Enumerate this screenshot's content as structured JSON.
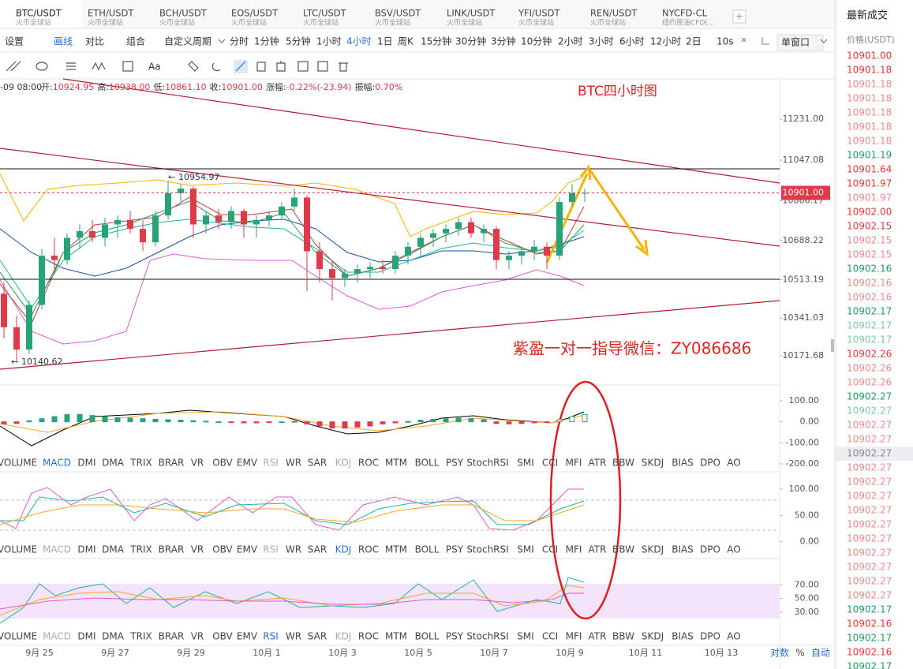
{
  "tabs": [
    {
      "symbol": "BTC/USDT",
      "exchange": "火币全球站"
    },
    {
      "symbol": "ETH/USDT",
      "exchange": "火币全球站"
    },
    {
      "symbol": "BCH/USDT",
      "exchange": "火币全球站"
    },
    {
      "symbol": "EOS/USDT",
      "exchange": "火币全球站"
    },
    {
      "symbol": "LTC/USDT",
      "exchange": "火币全球站"
    },
    {
      "symbol": "BSV/USDT",
      "exchange": "火币全球站"
    },
    {
      "symbol": "LINK/USDT",
      "exchange": "火币全球站"
    },
    {
      "symbol": "YFI/USDT",
      "exchange": "火币全球站"
    },
    {
      "symbol": "REN/USDT",
      "exchange": "火币全球站"
    },
    {
      "symbol": "NYCFD-CL",
      "exchange": "纽约原油CFD(..."
    }
  ],
  "toolbar": {
    "tools": [
      "设置",
      "画线",
      "对比",
      "组合"
    ],
    "custom_period": "自定义周期",
    "periods": [
      "分时",
      "1分钟",
      "5分钟",
      "1小时",
      "4小时",
      "1日",
      "周K",
      "15分钟",
      "30分钟",
      "3分钟",
      "10分钟",
      "2小时",
      "3小时",
      "6小时",
      "12小时",
      "2日"
    ],
    "refresh": "10s",
    "window": "单窗口"
  },
  "draw_tools": {
    "text_tool": "Aa"
  },
  "info_line": {
    "time": "-09 08:00",
    "items": [
      {
        "label": "开:",
        "value": "10924.95"
      },
      {
        "label": "高:",
        "value": "10938.00"
      },
      {
        "label": "低:",
        "value": "10861.10"
      },
      {
        "label": "收:",
        "value": "10901.00"
      },
      {
        "label": "涨幅:",
        "value": "-0.22%(-23.94)"
      },
      {
        "label": "振幅:",
        "value": "0.70%"
      }
    ]
  },
  "price_chart": {
    "ylim": [
      10045,
      11411
    ],
    "yticks": [
      {
        "value": 11231,
        "label": "11231.00"
      },
      {
        "value": 11047.08,
        "label": "11047.08"
      },
      {
        "value": 10866.17,
        "label": "10866.17"
      },
      {
        "value": 10688.22,
        "label": "10688.22"
      },
      {
        "value": 10513.19,
        "label": "10513.19"
      },
      {
        "value": 10341.03,
        "label": "10341.03"
      },
      {
        "value": 10171.68,
        "label": "10171.68"
      }
    ],
    "last_price": {
      "value": 10901,
      "label": "10901.00"
    },
    "high_label": {
      "value": 10954.97,
      "label": "10954.97"
    },
    "low_label": {
      "value": 10140.62,
      "label": "10140.62"
    },
    "up_color": "#27a37a",
    "down_color": "#e0394a",
    "candles": [
      [
        10450,
        10500,
        10250,
        10300
      ],
      [
        10300,
        10350,
        10140,
        10200
      ],
      [
        10200,
        10420,
        10180,
        10400
      ],
      [
        10400,
        10650,
        10380,
        10620
      ],
      [
        10620,
        10700,
        10560,
        10600
      ],
      [
        10600,
        10720,
        10580,
        10700
      ],
      [
        10700,
        10760,
        10650,
        10730
      ],
      [
        10730,
        10780,
        10680,
        10700
      ],
      [
        10700,
        10790,
        10660,
        10760
      ],
      [
        10760,
        10800,
        10700,
        10780
      ],
      [
        10780,
        10820,
        10720,
        10740
      ],
      [
        10740,
        10780,
        10640,
        10680
      ],
      [
        10680,
        10820,
        10660,
        10800
      ],
      [
        10800,
        10955,
        10780,
        10900
      ],
      [
        10900,
        10940,
        10860,
        10920
      ],
      [
        10920,
        10930,
        10700,
        10760
      ],
      [
        10760,
        10820,
        10720,
        10800
      ],
      [
        10800,
        10830,
        10740,
        10770
      ],
      [
        10770,
        10840,
        10740,
        10820
      ],
      [
        10820,
        10830,
        10700,
        10760
      ],
      [
        10760,
        10800,
        10700,
        10780
      ],
      [
        10780,
        10820,
        10750,
        10800
      ],
      [
        10800,
        10860,
        10780,
        10840
      ],
      [
        10840,
        10920,
        10820,
        10880
      ],
      [
        10880,
        10890,
        10460,
        10640
      ],
      [
        10640,
        10680,
        10500,
        10560
      ],
      [
        10560,
        10600,
        10420,
        10520
      ],
      [
        10520,
        10560,
        10480,
        10540
      ],
      [
        10540,
        10580,
        10500,
        10560
      ],
      [
        10560,
        10590,
        10520,
        10570
      ],
      [
        10570,
        10600,
        10540,
        10560
      ],
      [
        10560,
        10640,
        10540,
        10620
      ],
      [
        10620,
        10680,
        10580,
        10660
      ],
      [
        10660,
        10720,
        10620,
        10700
      ],
      [
        10700,
        10740,
        10660,
        10720
      ],
      [
        10720,
        10760,
        10680,
        10740
      ],
      [
        10740,
        10790,
        10710,
        10770
      ],
      [
        10770,
        10790,
        10700,
        10720
      ],
      [
        10720,
        10760,
        10680,
        10740
      ],
      [
        10740,
        10750,
        10560,
        10600
      ],
      [
        10600,
        10640,
        10560,
        10620
      ],
      [
        10620,
        10660,
        10580,
        10640
      ],
      [
        10640,
        10690,
        10600,
        10660
      ],
      [
        10660,
        10680,
        10560,
        10620
      ],
      [
        10620,
        10880,
        10600,
        10860
      ],
      [
        10860,
        10940,
        10840,
        10900
      ],
      [
        10900,
        10920,
        10860,
        10901
      ]
    ]
  },
  "annotations": {
    "title": "BTC四小时图",
    "contact": "紫盈一对一指导微信：ZY086686"
  },
  "macd_panel": {
    "ylim": [
      -207.5,
      175
    ],
    "yticks": [
      {
        "value": 100,
        "label": "100.00"
      },
      {
        "value": 0,
        "label": "0.00"
      },
      {
        "value": -100,
        "label": "-100.00"
      },
      {
        "value": -200,
        "label": "-200.00"
      }
    ],
    "histogram": [
      -10,
      -8,
      5,
      15,
      25,
      35,
      35,
      30,
      25,
      20,
      18,
      15,
      12,
      10,
      8,
      5,
      3,
      0,
      -3,
      -5,
      -5,
      -3,
      0,
      2,
      -10,
      -20,
      -30,
      -30,
      -25,
      -20,
      -10,
      -5,
      2,
      8,
      12,
      15,
      18,
      15,
      10,
      -8,
      -10,
      -8,
      -5,
      -3,
      10,
      25,
      35
    ]
  },
  "kdj_panel": {
    "ylim": [
      -20,
      130
    ],
    "yticks": [
      {
        "value": 100,
        "label": "100.00"
      },
      {
        "value": 50,
        "label": "50.00"
      },
      {
        "value": 0,
        "label": "0.00"
      }
    ]
  },
  "rsi_panel": {
    "ylim": [
      -9,
      106
    ],
    "yticks": [
      {
        "value": 70,
        "label": "70.00"
      },
      {
        "value": 50,
        "label": "50.00"
      },
      {
        "value": 30,
        "label": "30.00"
      }
    ]
  },
  "indicators": [
    "VOLUME",
    "MACD",
    "DMI",
    "DMA",
    "TRIX",
    "BRAR",
    "VR",
    "OBV",
    "EMV",
    "RSI",
    "WR",
    "SAR",
    "KDJ",
    "ROC",
    "MTM",
    "BOLL",
    "PSY",
    "StochRSI",
    "SMI",
    "CCI",
    "MFI",
    "ATR",
    "BBW",
    "SKDJ",
    "BIAS",
    "DPO",
    "AO"
  ],
  "dates": [
    "9月 25",
    "9月 27",
    "9月 29",
    "10月 1",
    "10月 3",
    "10月 5",
    "10月 7",
    "10月 9",
    "10月 11",
    "10月 13"
  ],
  "axis_options": [
    "对数",
    "%",
    "自动"
  ],
  "trades": {
    "title": "最新成交",
    "header": "价格(USDT)",
    "rows": [
      {
        "price": "10901.00",
        "color": "#e53935"
      },
      {
        "price": "10901.18",
        "color": "#e53935"
      },
      {
        "price": "10901.18",
        "color": "#f08a8a"
      },
      {
        "price": "10901.18",
        "color": "#f08a8a"
      },
      {
        "price": "10901.18",
        "color": "#f08a8a"
      },
      {
        "price": "10901.18",
        "color": "#f08a8a"
      },
      {
        "price": "10901.18",
        "color": "#f08a8a"
      },
      {
        "price": "10901.19",
        "color": "#1e9e5e"
      },
      {
        "price": "10901.64",
        "color": "#e53935"
      },
      {
        "price": "10901.97",
        "color": "#e53935"
      },
      {
        "price": "10901.97",
        "color": "#f08a8a"
      },
      {
        "price": "10902.00",
        "color": "#e53935"
      },
      {
        "price": "10902.15",
        "color": "#e53935"
      },
      {
        "price": "10902.15",
        "color": "#f08a8a"
      },
      {
        "price": "10902.15",
        "color": "#f08a8a"
      },
      {
        "price": "10902.16",
        "color": "#1e9e5e"
      },
      {
        "price": "10902.16",
        "color": "#f08a8a"
      },
      {
        "price": "10902.16",
        "color": "#f08a8a"
      },
      {
        "price": "10902.17",
        "color": "#1e9e5e"
      },
      {
        "price": "10902.17",
        "color": "#7fcaa0"
      },
      {
        "price": "10902.17",
        "color": "#7fcaa0"
      },
      {
        "price": "10902.26",
        "color": "#e53935"
      },
      {
        "price": "10902.26",
        "color": "#f08a8a"
      },
      {
        "price": "10902.26",
        "color": "#f08a8a"
      },
      {
        "price": "10902.27",
        "color": "#1e9e5e"
      },
      {
        "price": "10902.27",
        "color": "#7fcaa0"
      },
      {
        "price": "10902.27",
        "color": "#f08a8a"
      },
      {
        "price": "10902.27",
        "color": "#f08a8a"
      },
      {
        "price": "10902.27",
        "color": "#8a8a8a"
      },
      {
        "price": "10902.27",
        "color": "#f08a8a"
      },
      {
        "price": "10902.27",
        "color": "#f08a8a"
      },
      {
        "price": "10902.27",
        "color": "#f08a8a"
      },
      {
        "price": "10902.27",
        "color": "#f08a8a"
      },
      {
        "price": "10902.27",
        "color": "#f08a8a"
      },
      {
        "price": "10902.27",
        "color": "#f08a8a"
      },
      {
        "price": "10902.27",
        "color": "#f08a8a"
      },
      {
        "price": "10902.27",
        "color": "#f08a8a"
      },
      {
        "price": "10902.27",
        "color": "#f08a8a"
      },
      {
        "price": "10902.27",
        "color": "#f08a8a"
      },
      {
        "price": "10902.17",
        "color": "#1e9e5e"
      },
      {
        "price": "10902.16",
        "color": "#e53935"
      },
      {
        "price": "10902.17",
        "color": "#1e9e5e"
      },
      {
        "price": "10902.16",
        "color": "#e53935"
      },
      {
        "price": "10902.17",
        "color": "#1e9e5e"
      }
    ]
  }
}
